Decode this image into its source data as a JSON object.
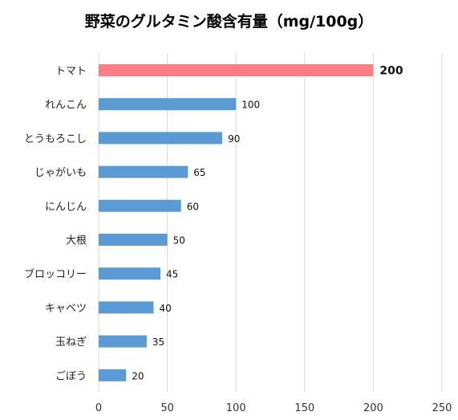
{
  "chart_data": {
    "type": "bar",
    "orientation": "horizontal",
    "title": "野菜のグルタミン酸含有量（mg/100g）",
    "xlabel": "",
    "ylabel": "",
    "categories": [
      "トマト",
      "れんこん",
      "とうもろこし",
      "じゃがいも",
      "にんじん",
      "大根",
      "ブロッコリー",
      "キャベツ",
      "玉ねぎ",
      "ごぼう"
    ],
    "values": [
      200,
      100,
      90,
      65,
      60,
      50,
      45,
      40,
      35,
      20
    ],
    "xlim": [
      0,
      250
    ],
    "xticks": [
      0,
      50,
      100,
      150,
      200,
      250
    ],
    "grid": "vertical",
    "legend": "none",
    "colors": {
      "default_bar": "#5b9bd5",
      "highlight_bar": "#ff7c80"
    },
    "highlight_category": "トマト"
  }
}
